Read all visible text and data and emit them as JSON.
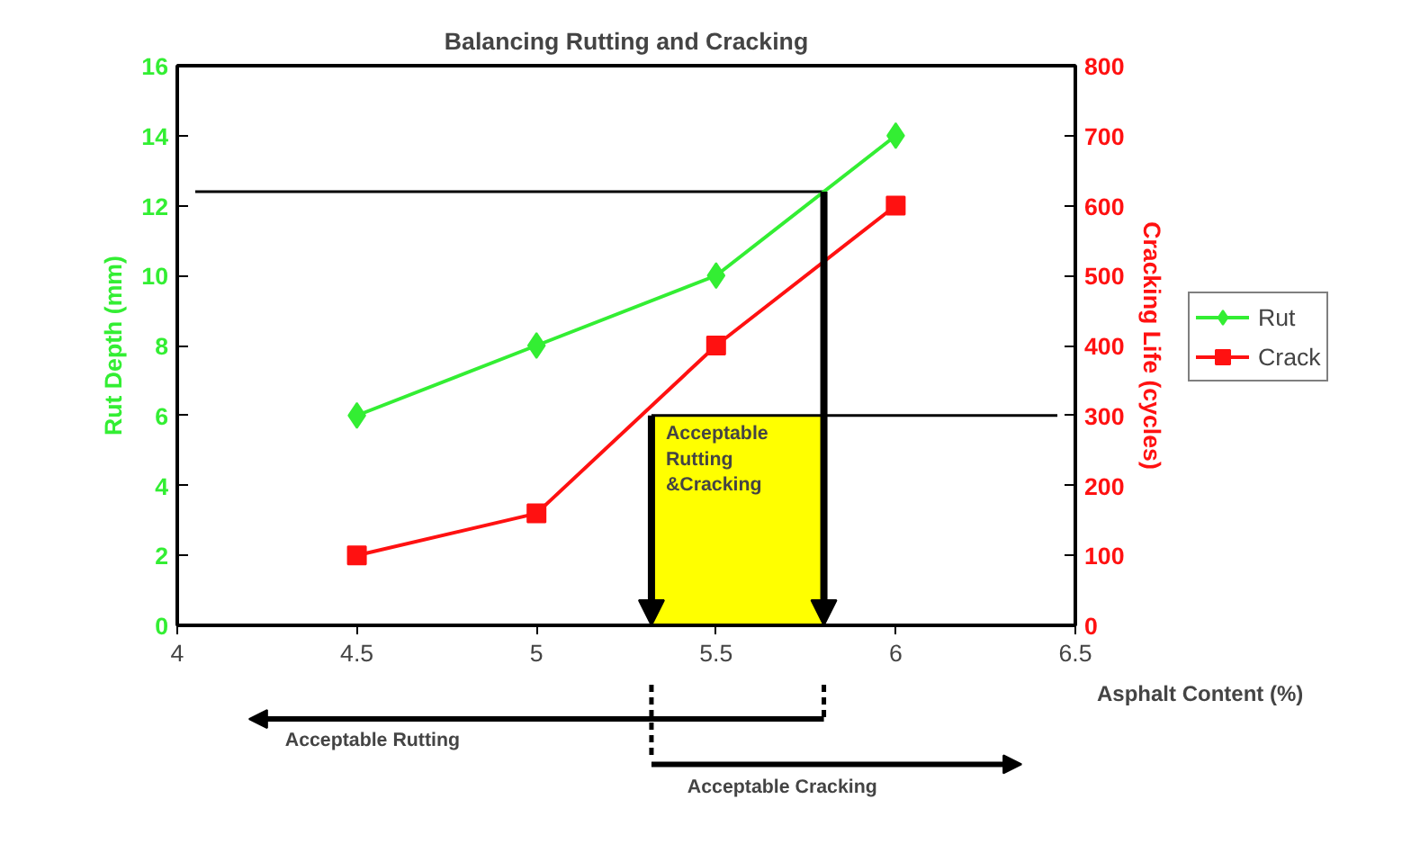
{
  "chart_data": {
    "type": "line",
    "title": "Balancing Rutting and Cracking",
    "xlabel": "Asphalt Content (%)",
    "ylabel": "Rut Depth (mm)",
    "y2label": "Cracking Life (cycles)",
    "x": [
      4.5,
      5,
      5.5,
      6
    ],
    "series": [
      {
        "name": "Rut",
        "color": "#33ee33",
        "marker": "diamond",
        "values": [
          6,
          8,
          10,
          14
        ]
      },
      {
        "name": "Crack",
        "color": "#ff1111",
        "marker": "square",
        "axis": "y2",
        "values": [
          100,
          160,
          400,
          600
        ]
      }
    ],
    "xlim": [
      4,
      6.5
    ],
    "xticks": [
      4,
      4.5,
      5,
      5.5,
      6,
      6.5
    ],
    "ylim": [
      0,
      16
    ],
    "yticks": [
      0,
      2,
      4,
      6,
      8,
      10,
      12,
      14,
      16
    ],
    "y2lim": [
      0,
      800
    ],
    "y2ticks": [
      0,
      100,
      200,
      300,
      400,
      500,
      600,
      700,
      800
    ],
    "ref_lines": [
      {
        "axis": "y",
        "value": 12.4
      },
      {
        "axis": "y2",
        "value": 300
      }
    ],
    "bands": [
      {
        "axis": "x",
        "from": 5.32,
        "to": 5.8,
        "label": "Acceptable\nRutting\n&Cracking",
        "color": "#ffff00"
      }
    ],
    "annotations": [
      "Acceptable  Rutting",
      "Acceptable  Cracking"
    ],
    "grid": false,
    "legend": "right",
    "line_style": "solid"
  }
}
